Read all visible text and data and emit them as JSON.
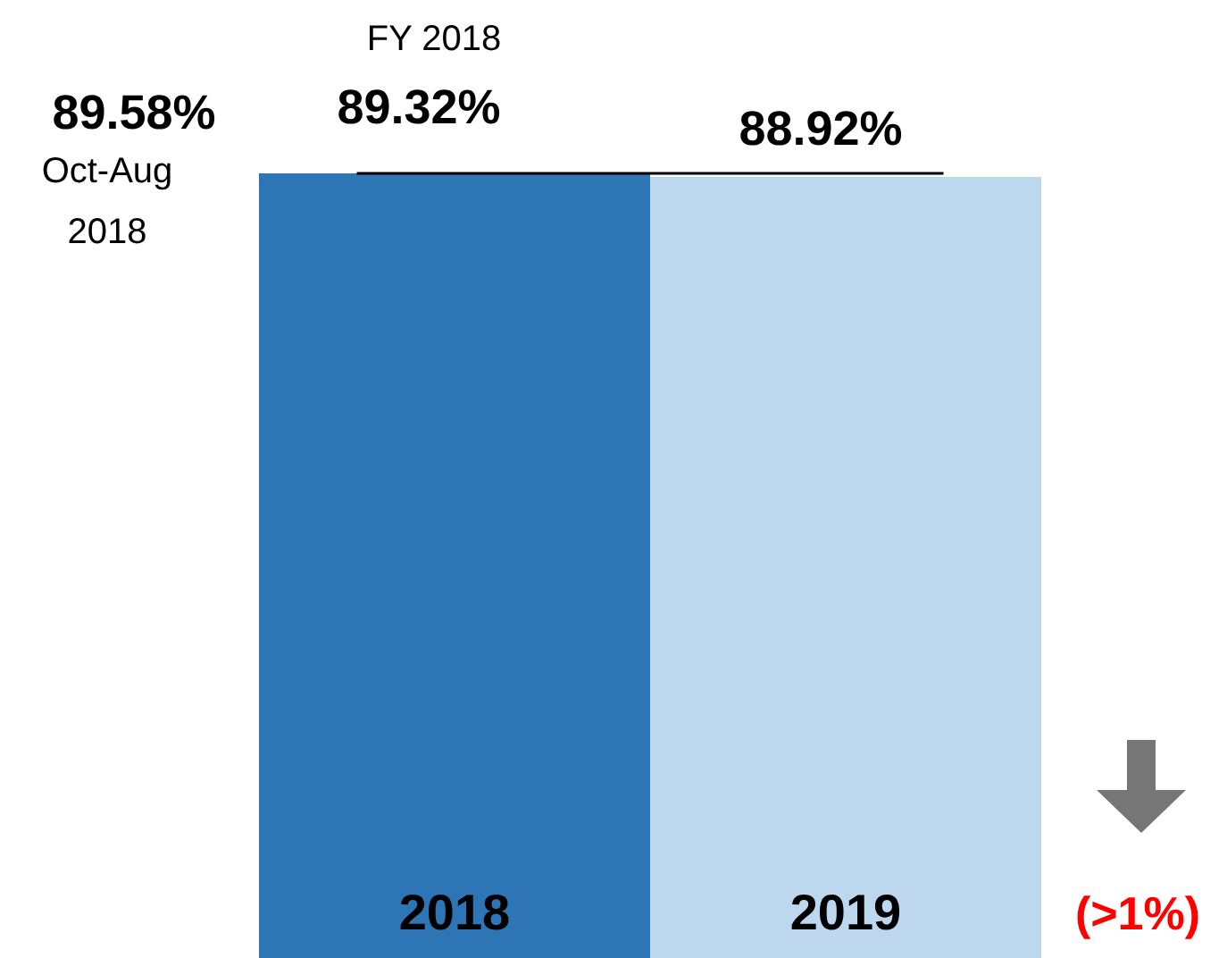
{
  "chart_data": {
    "type": "bar",
    "categories": [
      "2018",
      "2019"
    ],
    "values": [
      89.32,
      88.92
    ],
    "colors": [
      "#2e75b6",
      "#bdd7ee"
    ],
    "value_labels": [
      "89.32%",
      "88.92%"
    ],
    "ref_lines": [
      {
        "axis": "y",
        "value": 89.32,
        "color": "#000000"
      }
    ],
    "annotations": [
      "FY 2018",
      "89.58%",
      "Oct-Aug 2018",
      "(>1%)"
    ]
  }
}
